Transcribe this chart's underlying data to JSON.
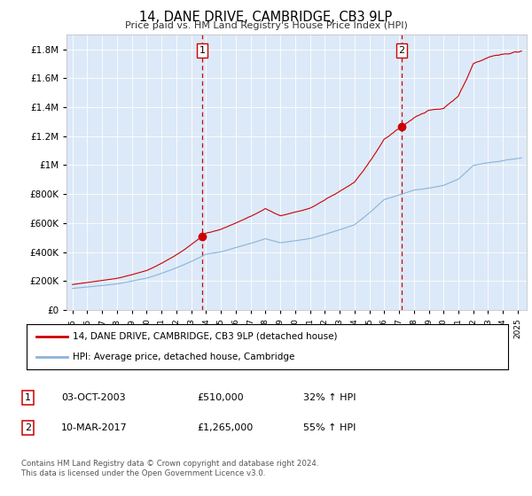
{
  "title": "14, DANE DRIVE, CAMBRIDGE, CB3 9LP",
  "subtitle": "Price paid vs. HM Land Registry's House Price Index (HPI)",
  "plot_bg_color": "#dce9f8",
  "ylim": [
    0,
    1900000
  ],
  "yticks": [
    0,
    200000,
    400000,
    600000,
    800000,
    1000000,
    1200000,
    1400000,
    1600000,
    1800000
  ],
  "ytick_labels": [
    "£0",
    "£200K",
    "£400K",
    "£600K",
    "£800K",
    "£1M",
    "£1.2M",
    "£1.4M",
    "£1.6M",
    "£1.8M"
  ],
  "xlim_start": 1994.6,
  "xlim_end": 2025.6,
  "red_line_color": "#cc0000",
  "blue_line_color": "#8ab4d8",
  "marker1_x": 2003.75,
  "marker1_y": 510000,
  "marker1_label": "03-OCT-2003",
  "marker1_price": "£510,000",
  "marker1_hpi": "32% ↑ HPI",
  "marker2_x": 2017.17,
  "marker2_y": 1265000,
  "marker2_label": "10-MAR-2017",
  "marker2_price": "£1,265,000",
  "marker2_hpi": "55% ↑ HPI",
  "legend_line1": "14, DANE DRIVE, CAMBRIDGE, CB3 9LP (detached house)",
  "legend_line2": "HPI: Average price, detached house, Cambridge",
  "footer": "Contains HM Land Registry data © Crown copyright and database right 2024.\nThis data is licensed under the Open Government Licence v3.0."
}
